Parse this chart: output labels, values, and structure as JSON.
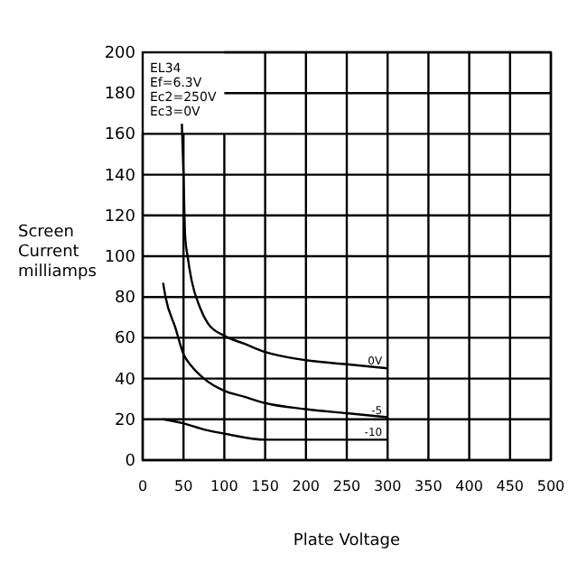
{
  "chart_data": {
    "type": "line",
    "xlabel": "Plate Voltage",
    "ylabel": "Screen Current milliamps",
    "xlim": [
      0,
      500
    ],
    "xticks": [
      0,
      50,
      100,
      150,
      200,
      250,
      300,
      350,
      400,
      450,
      500
    ],
    "ylim": [
      0,
      200
    ],
    "yticks": [
      0,
      20,
      40,
      60,
      80,
      100,
      120,
      140,
      160,
      180,
      200
    ],
    "grid": true,
    "marker": "none",
    "line_style": "solid",
    "annotations": [
      "EL34",
      "Ef=6.3V",
      "Ec2=250V",
      "Ec3=0V"
    ],
    "series": [
      {
        "name": "0V",
        "color": "#000000",
        "x": [
          48,
          50,
          52,
          55,
          60,
          70,
          80,
          100,
          125,
          150,
          200,
          250,
          300
        ],
        "values": [
          165,
          140,
          110,
          100,
          88,
          75,
          67,
          61,
          57,
          53,
          49,
          47,
          45
        ]
      },
      {
        "name": "-5",
        "color": "#000000",
        "x": [
          25,
          28,
          40,
          50,
          60,
          75,
          100,
          125,
          150,
          200,
          250,
          300
        ],
        "values": [
          87,
          80,
          65,
          52,
          46,
          40,
          34,
          31,
          28,
          25,
          23,
          21
        ]
      },
      {
        "name": "-10",
        "color": "#000000",
        "x": [
          25,
          50,
          75,
          100,
          150,
          200,
          250,
          300
        ],
        "values": [
          20,
          18,
          15,
          13,
          10,
          10,
          10,
          10
        ]
      }
    ]
  }
}
